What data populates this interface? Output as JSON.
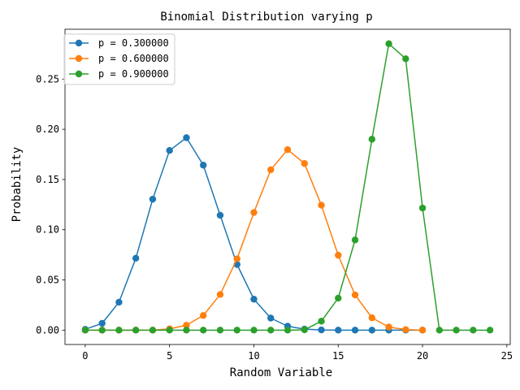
{
  "chart_data": {
    "type": "line",
    "title": "Binomial Distribution varying p",
    "xlabel": "Random Variable",
    "ylabel": "Probability",
    "xlim": [
      -1.2,
      25.2
    ],
    "ylim": [
      -0.0143,
      0.2996
    ],
    "xticks": [
      0,
      5,
      10,
      15,
      20,
      25
    ],
    "xtick_labels": [
      "0",
      "5",
      "10",
      "15",
      "20",
      "25"
    ],
    "yticks": [
      0.0,
      0.05,
      0.1,
      0.15,
      0.2,
      0.25
    ],
    "ytick_labels": [
      "0.00",
      "0.05",
      "0.10",
      "0.15",
      "0.20",
      "0.25"
    ],
    "legend_position": "top-left",
    "grid": false,
    "x": [
      0,
      1,
      2,
      3,
      4,
      5,
      6,
      7,
      8,
      9,
      10,
      11,
      12,
      13,
      14,
      15,
      16,
      17,
      18,
      19,
      20,
      21,
      22,
      23,
      24
    ],
    "series": [
      {
        "name": "p = 0.300000",
        "color": "#1f77b4",
        "values": [
          0.0008,
          0.0068,
          0.0278,
          0.0716,
          0.1304,
          0.1789,
          0.1916,
          0.1643,
          0.1144,
          0.0654,
          0.0308,
          0.012,
          0.0039,
          0.001,
          0.0002,
          0.0,
          0.0,
          0.0,
          0.0,
          0.0,
          0.0,
          null,
          null,
          null,
          null
        ]
      },
      {
        "name": "p = 0.600000",
        "color": "#ff7f0e",
        "values": [
          0.0,
          0.0,
          0.0,
          0.0,
          0.0,
          0.0013,
          0.0049,
          0.0146,
          0.0355,
          0.071,
          0.1171,
          0.1597,
          0.1797,
          0.1659,
          0.1244,
          0.0746,
          0.035,
          0.0123,
          0.0031,
          0.0005,
          0.0,
          null,
          null,
          null,
          null
        ]
      },
      {
        "name": "p = 0.900000",
        "color": "#2ca02c",
        "values": [
          0.0,
          0.0,
          0.0,
          0.0,
          0.0,
          0.0,
          0.0,
          0.0,
          0.0,
          0.0,
          0.0,
          0.0,
          0.0,
          0.0003,
          0.0089,
          0.0319,
          0.0898,
          0.1901,
          0.2852,
          0.2702,
          0.1216,
          0.0,
          0.0,
          0.0,
          0.0
        ]
      }
    ]
  }
}
